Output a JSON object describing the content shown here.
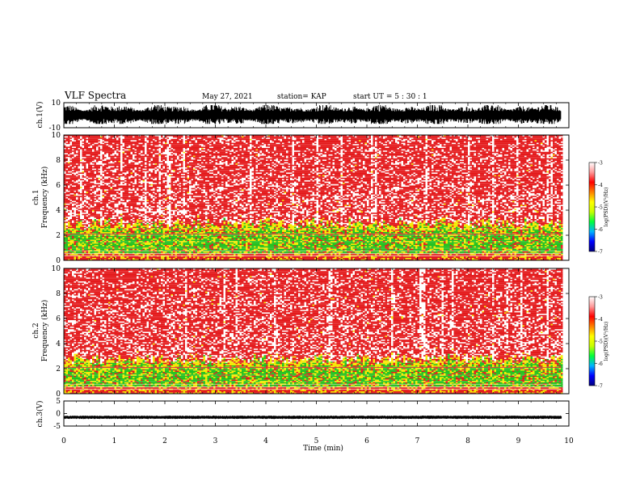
{
  "header": {
    "title": "VLF Spectra",
    "date": "May 27, 2021",
    "station": "station= KAP",
    "start": "start  UT =   5  : 30 : 1"
  },
  "colors": {
    "spectrogram_red": "#e41a1c",
    "spectrogram_yellow": "#f5e900",
    "spectrogram_green": "#22c01e",
    "waveform": "#000000",
    "colorbar_scale": [
      "#000080",
      "#0000ff",
      "#00b4ff",
      "#00ff3c",
      "#c8ff00",
      "#ffff00",
      "#ff8000",
      "#ff0000",
      "#ff9999",
      "#ffffff"
    ]
  },
  "chart_data": [
    {
      "id": "ch1_waveform",
      "type": "line",
      "ylabel": "ch.1(V)",
      "ylim": [
        -10,
        10
      ],
      "yticks": [
        10,
        -10
      ],
      "xlim": [
        0,
        10
      ],
      "description_values": {
        "typical_min": -7,
        "typical_max": 8
      }
    },
    {
      "id": "ch1_spectrogram",
      "type": "heatmap",
      "ylabel_line1": "ch.1",
      "ylabel_line2": "Frequency (kHz)",
      "ylim": [
        0,
        10
      ],
      "yticks": [
        0,
        2,
        4,
        6,
        8,
        10
      ],
      "xlim": [
        0,
        10
      ],
      "band_edge_khz": 3.0,
      "colorbar": {
        "label": "log(PSD)(V²/Hz)",
        "range": [
          -7,
          -3
        ],
        "ticks": [
          -3,
          -4,
          -5,
          -6,
          -7
        ]
      }
    },
    {
      "id": "ch2_spectrogram",
      "type": "heatmap",
      "ylabel_line1": "ch.2",
      "ylabel_line2": "Frequency (kHz)",
      "ylim": [
        0,
        10
      ],
      "yticks": [
        0,
        2,
        4,
        6,
        8,
        10
      ],
      "xlim": [
        0,
        10
      ],
      "band_edge_khz": 2.8,
      "colorbar": {
        "label": "log(PSD)(V²/Hz)",
        "range": [
          -7,
          -3
        ],
        "ticks": [
          -3,
          -4,
          -5,
          -6,
          -7
        ]
      }
    },
    {
      "id": "ch3_waveform",
      "type": "line",
      "ylabel": "ch.3(V)",
      "ylim": [
        -5,
        5
      ],
      "yticks": [
        5,
        0,
        -5
      ],
      "xlim": [
        0,
        10
      ],
      "description_values": {
        "typical_level": -1.5
      }
    }
  ],
  "xaxis": {
    "label": "Time  (min)",
    "ticks": [
      "0",
      "1",
      "2",
      "3",
      "4",
      "5",
      "6",
      "7",
      "8",
      "9",
      "10"
    ],
    "range": [
      0,
      10
    ],
    "data_end_min": 9.85
  }
}
